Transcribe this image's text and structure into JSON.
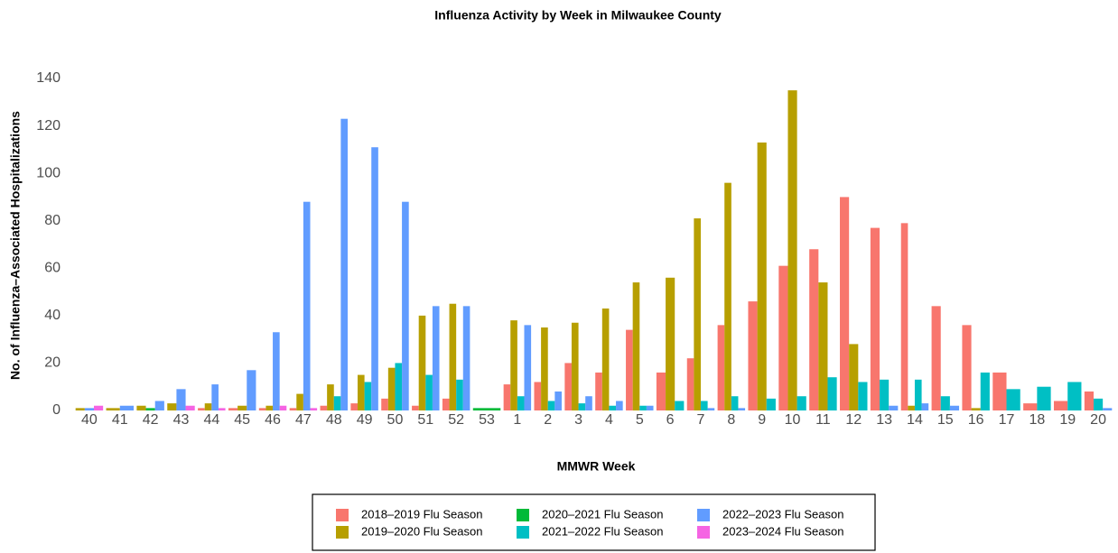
{
  "chart_data": {
    "type": "bar",
    "title": "Influenza Activity by Week in Milwaukee County",
    "x_label": "MMWR Week",
    "y_label": "No. of Influenza–Associated Hospitalizations",
    "categories": [
      "40",
      "41",
      "42",
      "43",
      "44",
      "45",
      "46",
      "47",
      "48",
      "49",
      "50",
      "51",
      "52",
      "53",
      "1",
      "2",
      "3",
      "4",
      "5",
      "6",
      "7",
      "8",
      "9",
      "10",
      "11",
      "12",
      "13",
      "14",
      "15",
      "16",
      "17",
      "18",
      "19",
      "20"
    ],
    "series": [
      {
        "name": "2018–2019 Flu Season",
        "color": "#F8766D",
        "values": [
          null,
          null,
          null,
          null,
          1,
          1,
          1,
          1,
          2,
          3,
          5,
          2,
          5,
          null,
          11,
          12,
          20,
          16,
          34,
          16,
          22,
          36,
          46,
          61,
          68,
          90,
          77,
          79,
          44,
          36,
          16,
          3,
          4,
          8
        ]
      },
      {
        "name": "2019–2020 Flu Season",
        "color": "#B79F00",
        "values": [
          1,
          1,
          2,
          3,
          3,
          2,
          2,
          7,
          11,
          15,
          18,
          40,
          45,
          null,
          38,
          35,
          37,
          43,
          54,
          56,
          81,
          96,
          113,
          135,
          54,
          28,
          null,
          2,
          null,
          1,
          null,
          null,
          null,
          null
        ]
      },
      {
        "name": "2020–2021 Flu Season",
        "color": "#00BA38",
        "values": [
          null,
          null,
          1,
          null,
          null,
          null,
          null,
          null,
          null,
          null,
          null,
          null,
          null,
          1,
          null,
          null,
          null,
          null,
          null,
          null,
          null,
          null,
          null,
          null,
          null,
          null,
          null,
          null,
          null,
          null,
          null,
          null,
          null,
          null
        ]
      },
      {
        "name": "2021–2022 Flu Season",
        "color": "#00BFC4",
        "values": [
          null,
          null,
          null,
          null,
          null,
          null,
          null,
          null,
          6,
          12,
          20,
          15,
          13,
          null,
          6,
          4,
          3,
          2,
          2,
          4,
          4,
          6,
          5,
          6,
          14,
          12,
          13,
          13,
          6,
          16,
          9,
          10,
          12,
          5
        ]
      },
      {
        "name": "2022–2023 Flu Season",
        "color": "#619CFF",
        "values": [
          1,
          2,
          4,
          9,
          11,
          17,
          33,
          88,
          123,
          111,
          88,
          44,
          44,
          null,
          36,
          8,
          6,
          4,
          2,
          null,
          1,
          1,
          null,
          null,
          null,
          null,
          2,
          3,
          2,
          null,
          null,
          null,
          null,
          1
        ]
      },
      {
        "name": "2023–2024 Flu Season",
        "color": "#F564E3",
        "values": [
          2,
          null,
          null,
          2,
          1,
          null,
          2,
          1,
          null,
          null,
          null,
          null,
          null,
          null,
          null,
          null,
          null,
          null,
          null,
          null,
          null,
          null,
          null,
          null,
          null,
          null,
          null,
          null,
          null,
          null,
          null,
          null,
          null,
          null
        ]
      }
    ],
    "ylim": [
      0,
      140
    ],
    "yticks": [
      0,
      20,
      40,
      60,
      80,
      100,
      120,
      140
    ],
    "grid": false
  }
}
